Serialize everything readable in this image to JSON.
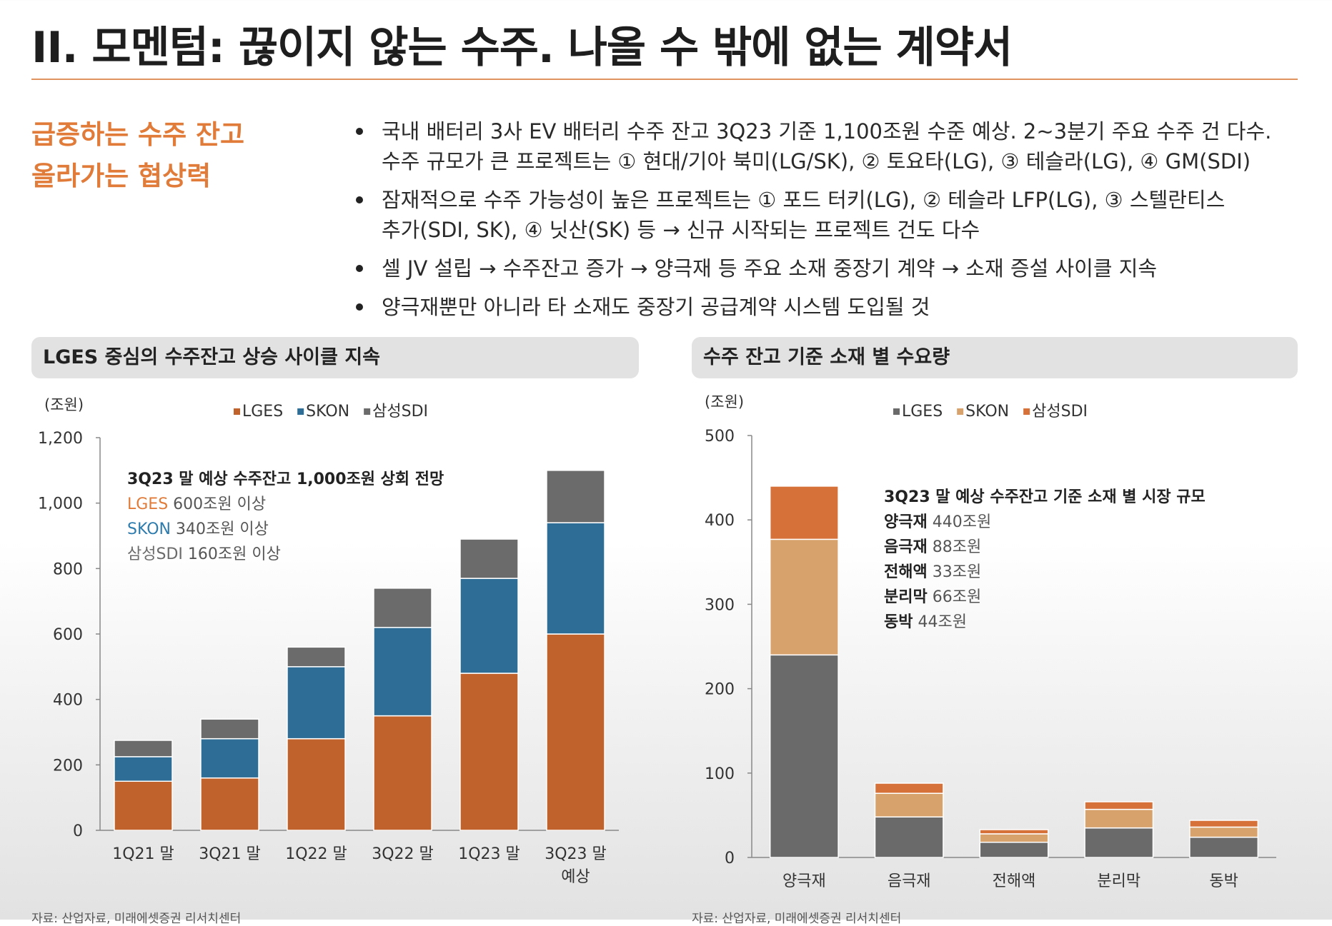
{
  "title": "II. 모멘텀: 끊이지 않는 수주. 나올 수 밖에 없는 계약서",
  "subhead": {
    "line1": "급증하는 수주 잔고",
    "line2": "올라가는 협상력"
  },
  "bullets": [
    [
      "국내 배터리 3사 EV 배터리 수주 잔고 3Q23 기준 1,100조원 수준 예상. 2~3분기 주요 수주 건 다수.",
      "수주 규모가 큰 프로젝트는 ① 현대/기아 북미(LG/SK), ② 토요타(LG), ③ 테슬라(LG), ④ GM(SDI)"
    ],
    [
      "잠재적으로 수주 가능성이 높은 프로젝트는 ① 포드 터키(LG), ② 테슬라 LFP(LG), ③ 스텔란티스",
      "추가(SDI, SK), ④ 닛산(SK) 등 → 신규 시작되는 프로젝트 건도 다수"
    ],
    [
      "셀 JV 설립 → 수주잔고 증가 → 양극재 등 주요 소재 중장기 계약 → 소재 증설 사이클 지속"
    ],
    [
      "양극재뿐만 아니라 타 소재도 중장기 공급계약 시스템 도입될 것"
    ]
  ],
  "source_text": "자료: 산업자료, 미래에셋증권 리서치센터",
  "chart_data": [
    {
      "type": "bar",
      "stacked": true,
      "title": "LGES 중심의 수주잔고 상승 사이클 지속",
      "ylabel": "(조원)",
      "ylim": [
        0,
        1200
      ],
      "yticks": [
        0,
        200,
        400,
        600,
        800,
        1000,
        1200
      ],
      "ytick_labels": [
        "0",
        "200",
        "400",
        "600",
        "800",
        "1,000",
        "1,200"
      ],
      "categories": [
        [
          "1Q21 말"
        ],
        [
          "3Q21 말"
        ],
        [
          "1Q22 말"
        ],
        [
          "3Q22 말"
        ],
        [
          "1Q23 말"
        ],
        [
          "3Q23 말",
          "예상"
        ]
      ],
      "series": [
        {
          "name": "LGES",
          "color": "#c0622b",
          "values": [
            150,
            160,
            280,
            350,
            480,
            600
          ]
        },
        {
          "name": "SKON",
          "color": "#2e6d95",
          "values": [
            75,
            120,
            220,
            270,
            290,
            340
          ]
        },
        {
          "name": "삼성SDI",
          "color": "#6b6b6b",
          "values": [
            50,
            60,
            60,
            120,
            120,
            160
          ]
        }
      ],
      "legend_colors": [
        "#c0622b",
        "#2e6d95",
        "#6b6b6b"
      ],
      "annotation": {
        "header": "3Q23 말 예상 수주잔고 1,000조원 상회 전망",
        "lines": [
          {
            "key": "LGES",
            "value": " 600조원 이상",
            "color": "#e07b39"
          },
          {
            "key": "SKON",
            "value": " 340조원 이상",
            "color": "#2e7cad"
          },
          {
            "key": "삼성SDI",
            "value": " 160조원 이상",
            "color": "#6b6b6b"
          }
        ]
      }
    },
    {
      "type": "bar",
      "stacked": true,
      "title": "수주 잔고 기준 소재 별 수요량",
      "ylabel": "(조원)",
      "ylim": [
        0,
        500
      ],
      "yticks": [
        0,
        100,
        200,
        300,
        400,
        500
      ],
      "ytick_labels": [
        "0",
        "100",
        "200",
        "300",
        "400",
        "500"
      ],
      "categories": [
        [
          "양극재"
        ],
        [
          "음극재"
        ],
        [
          "전해액"
        ],
        [
          "분리막"
        ],
        [
          "동박"
        ]
      ],
      "series": [
        {
          "name": "LGES",
          "color": "#6a6a6a",
          "values": [
            240,
            48,
            18,
            35,
            24
          ]
        },
        {
          "name": "SKON",
          "color": "#d8a26c",
          "values": [
            137,
            28,
            10,
            22,
            12
          ]
        },
        {
          "name": "삼성SDI",
          "color": "#d6713a",
          "values": [
            63,
            12,
            5,
            9,
            8
          ]
        }
      ],
      "legend_colors": [
        "#6a6a6a",
        "#d8a26c",
        "#d6713a"
      ],
      "annotation": {
        "header": "3Q23 말 예상 수주잔고 기준 소재 별 시장 규모",
        "lines": [
          {
            "key": "양극재",
            "value": " 440조원",
            "color": "#222222"
          },
          {
            "key": "음극재",
            "value": " 88조원",
            "color": "#222222"
          },
          {
            "key": "전해액",
            "value": " 33조원",
            "color": "#222222"
          },
          {
            "key": "분리막",
            "value": " 66조원",
            "color": "#222222"
          },
          {
            "key": "동박",
            "value": " 44조원",
            "color": "#222222"
          }
        ]
      }
    }
  ]
}
